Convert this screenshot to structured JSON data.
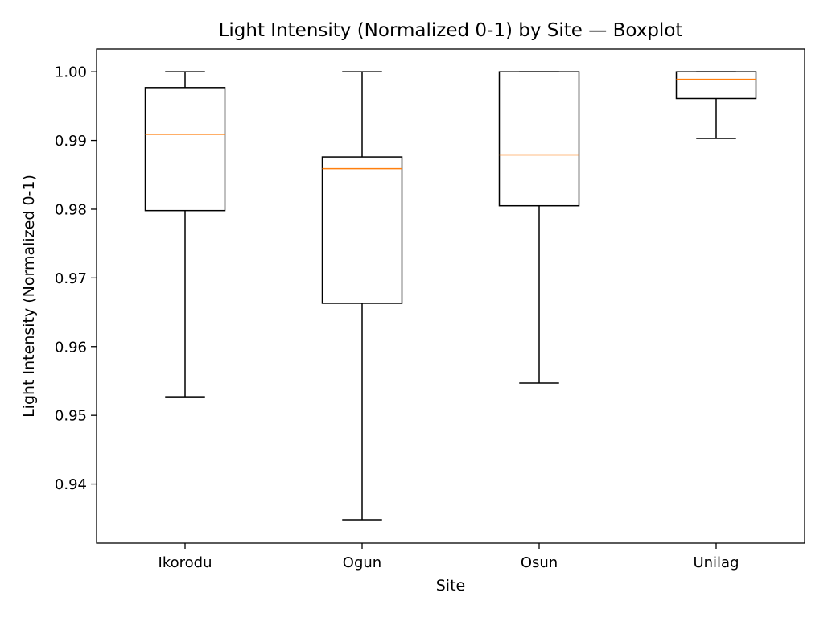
{
  "chart_data": {
    "type": "boxplot",
    "title": "Light Intensity (Normalized 0-1) by Site — Boxplot",
    "xlabel": "Site",
    "ylabel": "Light Intensity (Normalized 0-1)",
    "ylim": [
      0.9314,
      1.0033
    ],
    "yticks": [
      0.94,
      0.95,
      0.96,
      0.97,
      0.98,
      0.99,
      1.0
    ],
    "ytick_labels": [
      "0.94",
      "0.95",
      "0.96",
      "0.97",
      "0.98",
      "0.99",
      "1.00"
    ],
    "grid": false,
    "categories": [
      "Ikorodu",
      "Ogun",
      "Osun",
      "Unilag"
    ],
    "boxes": [
      {
        "category": "Ikorodu",
        "whisker_low": 0.9527,
        "q1": 0.9798,
        "median": 0.9909,
        "q3": 0.9977,
        "whisker_high": 1.0
      },
      {
        "category": "Ogun",
        "whisker_low": 0.9348,
        "q1": 0.9663,
        "median": 0.9859,
        "q3": 0.9876,
        "whisker_high": 1.0
      },
      {
        "category": "Osun",
        "whisker_low": 0.9547,
        "q1": 0.9805,
        "median": 0.9879,
        "q3": 1.0,
        "whisker_high": 1.0
      },
      {
        "category": "Unilag",
        "whisker_low": 0.9903,
        "q1": 0.9961,
        "median": 0.9989,
        "q3": 1.0,
        "whisker_high": 1.0
      }
    ],
    "colors": {
      "box": "#000000",
      "median": "#ff7f0e",
      "axes": "#000000"
    }
  }
}
